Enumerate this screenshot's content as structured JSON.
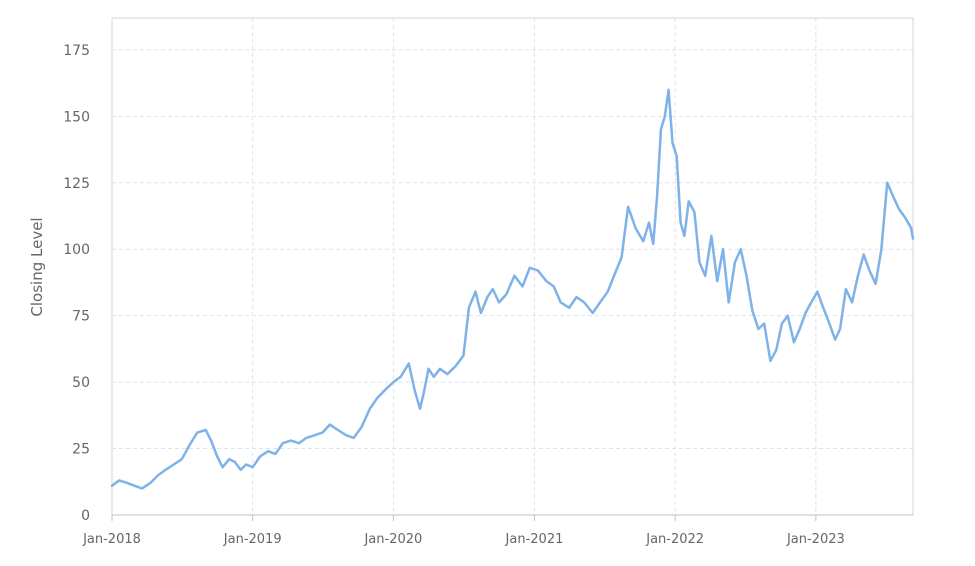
{
  "chart_data": {
    "type": "line",
    "title": "",
    "xlabel": "",
    "ylabel": "Closing Level",
    "ylim": [
      0,
      187
    ],
    "xlim": [
      "2018-01-01",
      "2023-09-10"
    ],
    "yticks": [
      0,
      25,
      50,
      75,
      100,
      125,
      150,
      175
    ],
    "xticks": [
      {
        "date": "2018-01-01",
        "label": "Jan-2018"
      },
      {
        "date": "2019-01-01",
        "label": "Jan-2019"
      },
      {
        "date": "2020-01-01",
        "label": "Jan-2020"
      },
      {
        "date": "2021-01-01",
        "label": "Jan-2021"
      },
      {
        "date": "2022-01-01",
        "label": "Jan-2022"
      },
      {
        "date": "2023-01-01",
        "label": "Jan-2023"
      }
    ],
    "grid": true,
    "line_color": "#7eb2e8",
    "series": [
      {
        "x": [
          "2018-01-01",
          "2018-01-20",
          "2018-02-10",
          "2018-03-01",
          "2018-03-20",
          "2018-04-10",
          "2018-05-01",
          "2018-05-20",
          "2018-06-10",
          "2018-07-01",
          "2018-07-20",
          "2018-08-10",
          "2018-09-01",
          "2018-09-15",
          "2018-10-01",
          "2018-10-15",
          "2018-11-01",
          "2018-11-15",
          "2018-12-01",
          "2018-12-15",
          "2019-01-01",
          "2019-01-20",
          "2019-02-10",
          "2019-03-01",
          "2019-03-20",
          "2019-04-10",
          "2019-05-01",
          "2019-05-20",
          "2019-06-10",
          "2019-07-01",
          "2019-07-20",
          "2019-08-10",
          "2019-09-01",
          "2019-09-20",
          "2019-10-10",
          "2019-11-01",
          "2019-11-20",
          "2019-12-10",
          "2020-01-01",
          "2020-01-20",
          "2020-02-10",
          "2020-02-25",
          "2020-03-10",
          "2020-03-20",
          "2020-04-01",
          "2020-04-15",
          "2020-05-01",
          "2020-05-20",
          "2020-06-10",
          "2020-07-01",
          "2020-07-15",
          "2020-08-01",
          "2020-08-15",
          "2020-09-01",
          "2020-09-15",
          "2020-10-01",
          "2020-10-20",
          "2020-11-10",
          "2020-12-01",
          "2020-12-20",
          "2021-01-10",
          "2021-02-01",
          "2021-02-20",
          "2021-03-10",
          "2021-04-01",
          "2021-04-20",
          "2021-05-10",
          "2021-06-01",
          "2021-06-20",
          "2021-07-10",
          "2021-08-01",
          "2021-08-15",
          "2021-09-01",
          "2021-09-20",
          "2021-10-10",
          "2021-10-25",
          "2021-11-05",
          "2021-11-15",
          "2021-11-25",
          "2021-12-05",
          "2021-12-15",
          "2021-12-25",
          "2022-01-05",
          "2022-01-15",
          "2022-01-25",
          "2022-02-05",
          "2022-02-20",
          "2022-03-05",
          "2022-03-20",
          "2022-04-05",
          "2022-04-20",
          "2022-05-05",
          "2022-05-20",
          "2022-06-05",
          "2022-06-20",
          "2022-07-05",
          "2022-07-20",
          "2022-08-05",
          "2022-08-20",
          "2022-09-05",
          "2022-09-20",
          "2022-10-05",
          "2022-10-20",
          "2022-11-05",
          "2022-11-20",
          "2022-12-05",
          "2022-12-20",
          "2023-01-05",
          "2023-01-20",
          "2023-02-05",
          "2023-02-20",
          "2023-03-05",
          "2023-03-20",
          "2023-04-05",
          "2023-04-20",
          "2023-05-05",
          "2023-05-20",
          "2023-06-05",
          "2023-06-20",
          "2023-07-05",
          "2023-07-20",
          "2023-08-05",
          "2023-08-20",
          "2023-09-05",
          "2023-09-10"
        ],
        "y": [
          11,
          13,
          12,
          11,
          10,
          12,
          15,
          17,
          19,
          21,
          26,
          31,
          32,
          28,
          22,
          18,
          21,
          20,
          17,
          19,
          18,
          22,
          24,
          23,
          27,
          28,
          27,
          29,
          30,
          31,
          34,
          32,
          30,
          29,
          33,
          40,
          44,
          47,
          50,
          52,
          57,
          47,
          40,
          46,
          55,
          52,
          55,
          53,
          56,
          60,
          78,
          84,
          76,
          82,
          85,
          80,
          83,
          90,
          86,
          93,
          92,
          88,
          86,
          80,
          78,
          82,
          80,
          76,
          80,
          84,
          92,
          97,
          116,
          108,
          103,
          110,
          102,
          120,
          145,
          150,
          160,
          140,
          135,
          110,
          105,
          118,
          114,
          95,
          90,
          105,
          88,
          100,
          80,
          95,
          100,
          90,
          77,
          70,
          72,
          58,
          62,
          72,
          75,
          65,
          70,
          76,
          80,
          84,
          78,
          72,
          66,
          70,
          85,
          80,
          90,
          98,
          92,
          87,
          100,
          125,
          120,
          115,
          112,
          108,
          104
        ]
      }
    ]
  }
}
